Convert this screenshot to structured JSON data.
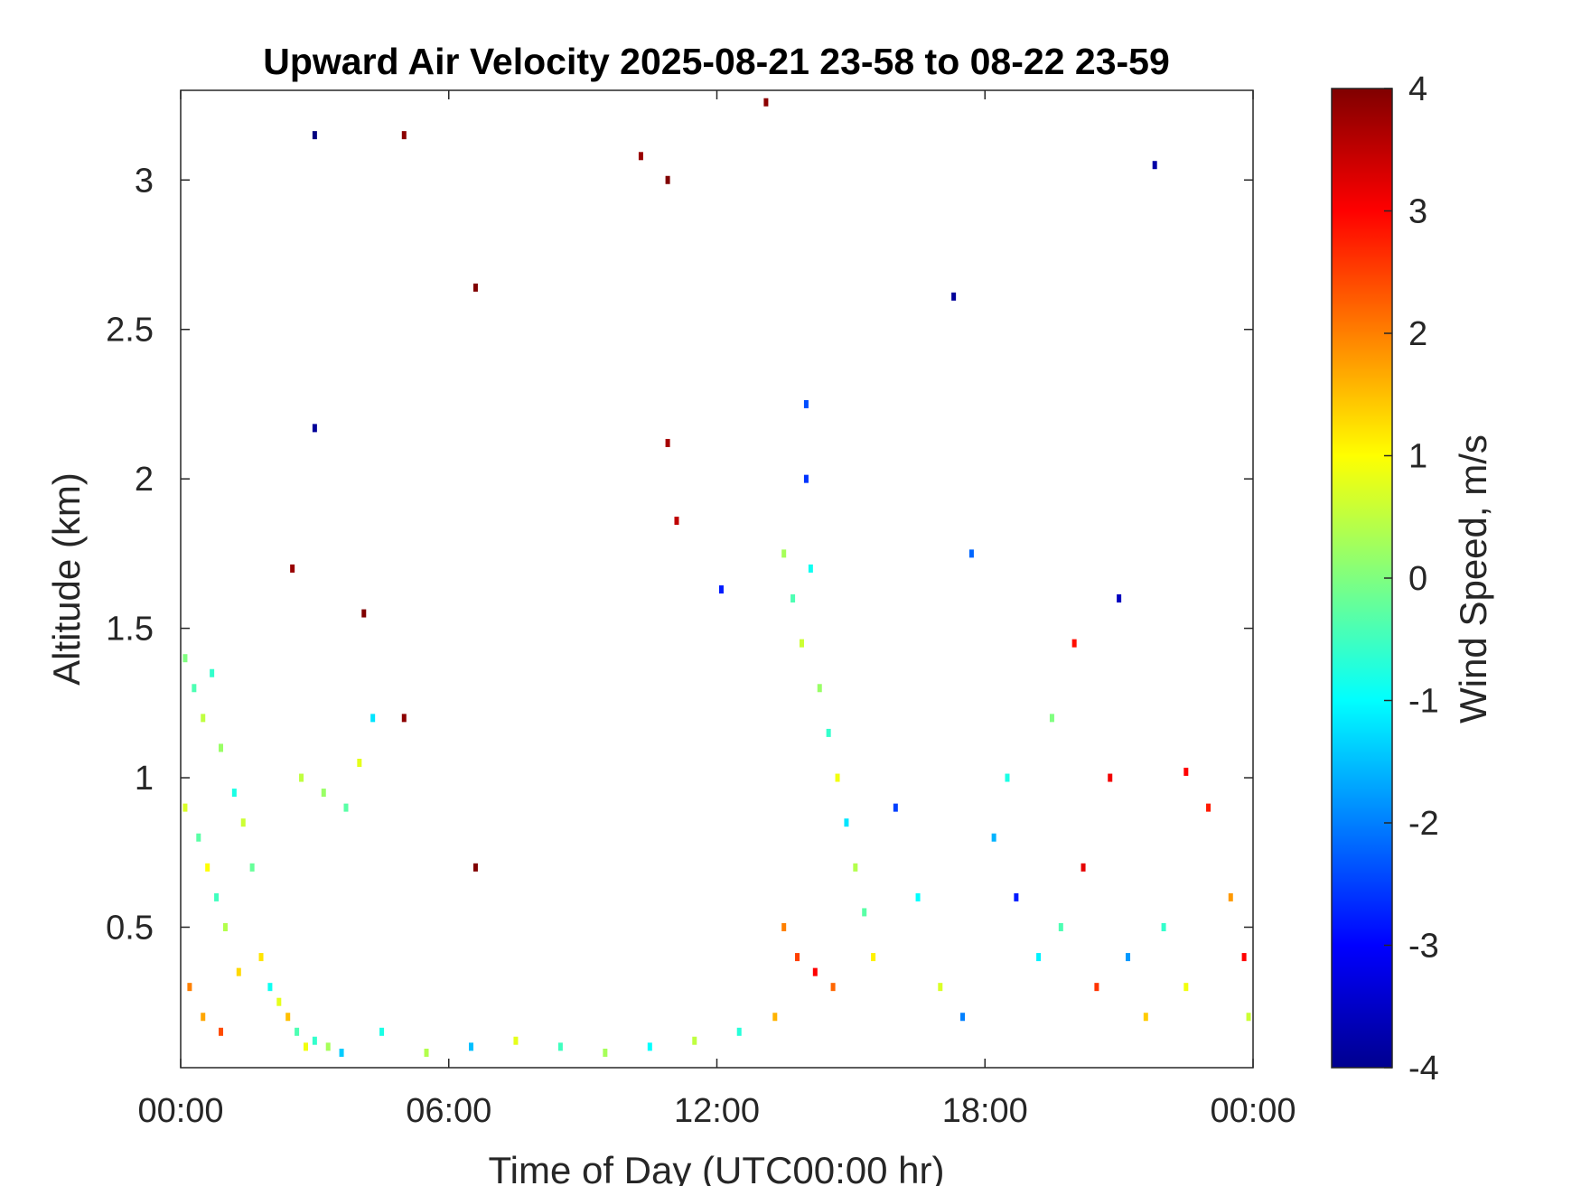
{
  "chart_data": {
    "type": "heatmap",
    "title": "Upward Air Velocity 2025-08-21 23-58 to 08-22 23-59",
    "xlabel": "Time of Day (UTC00:00 hr)",
    "ylabel": "Altitude (km)",
    "x_unit": "hour",
    "xlim": [
      0,
      24
    ],
    "ylim": [
      0.03,
      3.3
    ],
    "x_ticks": [
      0,
      6,
      12,
      18,
      24
    ],
    "x_tick_labels": [
      "00:00",
      "06:00",
      "12:00",
      "18:00",
      "00:00"
    ],
    "y_ticks": [
      0.5,
      1,
      1.5,
      2,
      2.5,
      3
    ],
    "y_tick_labels": [
      "0.5",
      "1",
      "1.5",
      "2",
      "2.5",
      "3"
    ],
    "colorbar": {
      "label": "Wind Speed, m/s",
      "clim": [
        -4,
        4
      ],
      "ticks": [
        4,
        3,
        2,
        1,
        0,
        -1,
        -2,
        -3,
        -4
      ],
      "tick_labels": [
        "4",
        "3",
        "2",
        "1",
        "0",
        "-1",
        "-2",
        "-3",
        "-4"
      ],
      "colormap": "jet"
    },
    "grid": false,
    "legend": "none",
    "points": [
      [
        0.1,
        1.4,
        0.0
      ],
      [
        0.3,
        1.3,
        -0.4
      ],
      [
        0.5,
        1.2,
        0.5
      ],
      [
        0.7,
        1.35,
        -0.6
      ],
      [
        0.9,
        1.1,
        0.2
      ],
      [
        0.1,
        0.9,
        0.7
      ],
      [
        0.4,
        0.8,
        -0.3
      ],
      [
        0.6,
        0.7,
        1.0
      ],
      [
        0.8,
        0.6,
        -0.5
      ],
      [
        1.0,
        0.5,
        0.4
      ],
      [
        1.2,
        0.95,
        -0.8
      ],
      [
        1.4,
        0.85,
        0.6
      ],
      [
        1.6,
        0.7,
        -0.2
      ],
      [
        1.8,
        0.4,
        1.2
      ],
      [
        2.0,
        0.3,
        -0.9
      ],
      [
        2.2,
        0.25,
        0.8
      ],
      [
        2.4,
        0.2,
        1.5
      ],
      [
        2.6,
        0.15,
        -0.4
      ],
      [
        2.8,
        0.1,
        0.9
      ],
      [
        3.0,
        0.12,
        -0.6
      ],
      [
        3.3,
        0.1,
        0.3
      ],
      [
        3.6,
        0.08,
        -1.4
      ],
      [
        0.2,
        0.3,
        2.0
      ],
      [
        0.5,
        0.2,
        1.7
      ],
      [
        0.9,
        0.15,
        2.4
      ],
      [
        1.3,
        0.35,
        1.3
      ],
      [
        2.7,
        1.0,
        0.5
      ],
      [
        3.2,
        0.95,
        0.2
      ],
      [
        3.7,
        0.9,
        -0.3
      ],
      [
        4.0,
        1.05,
        0.8
      ],
      [
        4.3,
        1.2,
        -1.2
      ],
      [
        2.5,
        1.7,
        3.8
      ],
      [
        4.1,
        1.55,
        4.0
      ],
      [
        5.0,
        1.2,
        3.9
      ],
      [
        3.0,
        3.15,
        -4.0
      ],
      [
        5.0,
        3.15,
        3.9
      ],
      [
        3.0,
        2.17,
        -3.8
      ],
      [
        6.6,
        2.64,
        4.0
      ],
      [
        6.6,
        0.7,
        4.0
      ],
      [
        10.3,
        3.08,
        3.8
      ],
      [
        10.9,
        3.0,
        4.0
      ],
      [
        10.9,
        2.12,
        3.7
      ],
      [
        11.1,
        1.86,
        3.5
      ],
      [
        13.1,
        3.26,
        3.9
      ],
      [
        17.3,
        2.61,
        -3.8
      ],
      [
        21.8,
        3.05,
        -3.7
      ],
      [
        12.1,
        1.63,
        -2.8
      ],
      [
        14.0,
        2.25,
        -2.4
      ],
      [
        14.0,
        2.0,
        -2.6
      ],
      [
        13.5,
        1.75,
        0.3
      ],
      [
        13.7,
        1.6,
        -0.4
      ],
      [
        13.9,
        1.45,
        0.6
      ],
      [
        14.1,
        1.7,
        -0.9
      ],
      [
        14.3,
        1.3,
        0.2
      ],
      [
        14.5,
        1.15,
        -0.6
      ],
      [
        14.7,
        1.0,
        0.9
      ],
      [
        14.9,
        0.85,
        -1.2
      ],
      [
        15.1,
        0.7,
        0.4
      ],
      [
        15.3,
        0.55,
        -0.3
      ],
      [
        15.5,
        0.4,
        1.1
      ],
      [
        13.5,
        0.5,
        2.0
      ],
      [
        13.8,
        0.4,
        2.5
      ],
      [
        14.2,
        0.35,
        3.0
      ],
      [
        14.6,
        0.3,
        2.2
      ],
      [
        13.3,
        0.2,
        1.6
      ],
      [
        12.5,
        0.15,
        -0.7
      ],
      [
        11.5,
        0.12,
        0.5
      ],
      [
        10.5,
        0.1,
        -1.0
      ],
      [
        9.5,
        0.08,
        0.3
      ],
      [
        8.5,
        0.1,
        -0.5
      ],
      [
        7.5,
        0.12,
        0.8
      ],
      [
        6.5,
        0.1,
        -1.5
      ],
      [
        5.5,
        0.08,
        0.4
      ],
      [
        4.5,
        0.15,
        -0.8
      ],
      [
        16.0,
        0.9,
        -2.5
      ],
      [
        16.5,
        0.6,
        -1.0
      ],
      [
        17.0,
        0.3,
        0.7
      ],
      [
        17.5,
        0.2,
        -2.0
      ],
      [
        18.2,
        0.8,
        -1.6
      ],
      [
        18.7,
        0.6,
        -2.8
      ],
      [
        19.2,
        0.4,
        -1.1
      ],
      [
        19.7,
        0.5,
        -0.4
      ],
      [
        20.2,
        0.7,
        3.2
      ],
      [
        20.5,
        0.3,
        2.6
      ],
      [
        20.8,
        1.0,
        3.1
      ],
      [
        21.2,
        0.4,
        -1.8
      ],
      [
        21.6,
        0.2,
        1.4
      ],
      [
        22.0,
        0.5,
        -0.6
      ],
      [
        22.5,
        0.3,
        0.9
      ],
      [
        23.0,
        0.9,
        2.8
      ],
      [
        23.5,
        0.6,
        1.8
      ],
      [
        23.8,
        0.4,
        3.0
      ],
      [
        23.9,
        0.2,
        0.6
      ],
      [
        19.5,
        1.2,
        0.0
      ],
      [
        18.5,
        1.0,
        -0.8
      ],
      [
        20.0,
        1.45,
        2.9
      ],
      [
        21.0,
        1.6,
        -3.5
      ],
      [
        17.7,
        1.75,
        -2.2
      ],
      [
        22.5,
        1.02,
        3.0
      ]
    ]
  }
}
